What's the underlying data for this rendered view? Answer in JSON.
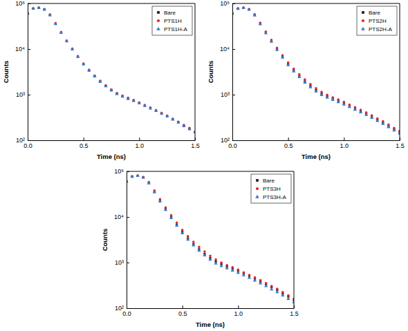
{
  "chart_data": [
    {
      "type": "scatter",
      "xlabel": "Time (ns)",
      "ylabel": "Counts",
      "log": "y",
      "legend": "upper right",
      "x": [
        0,
        0.05,
        0.1,
        0.15,
        0.2,
        0.25,
        0.3,
        0.35,
        0.4,
        0.45,
        0.5,
        0.55,
        0.6,
        0.65,
        0.7,
        0.75,
        0.8,
        0.85,
        0.9,
        0.95,
        1.0,
        1.05,
        1.1,
        1.15,
        1.2,
        1.25,
        1.3,
        1.35,
        1.4,
        1.45,
        1.5
      ],
      "xlim": [
        0,
        1.5
      ],
      "xticks": [
        {
          "value": 0,
          "label": "0.0"
        },
        {
          "value": 0.5,
          "label": "0.5"
        },
        {
          "value": 1,
          "label": "1.0"
        },
        {
          "value": 1.5,
          "label": "1.5"
        }
      ],
      "ylim": [
        100,
        100000
      ],
      "yticks": [
        {
          "value": 100,
          "label": "10²"
        },
        {
          "value": 1000,
          "label": "10³"
        },
        {
          "value": 10000,
          "label": "10⁴"
        },
        {
          "value": 100000,
          "label": "10⁵"
        }
      ],
      "series": [
        {
          "name": "Bare",
          "color": "#1a1a2e",
          "marker": "square",
          "values": [
            60000,
            77000,
            80000,
            74000,
            56000,
            36000,
            23000,
            15000,
            10000,
            6800,
            4700,
            3400,
            2550,
            1950,
            1550,
            1250,
            1050,
            920,
            820,
            740,
            660,
            580,
            510,
            450,
            390,
            340,
            290,
            250,
            210,
            180,
            150
          ]
        },
        {
          "name": "PTS1H",
          "color": "#e8231c",
          "marker": "circle",
          "values": [
            61000,
            77500,
            80000,
            74500,
            57000,
            37000,
            23500,
            15300,
            10200,
            7000,
            4800,
            3500,
            2600,
            2000,
            1600,
            1300,
            1080,
            950,
            850,
            760,
            670,
            590,
            520,
            455,
            395,
            345,
            295,
            255,
            215,
            185,
            150
          ]
        },
        {
          "name": "PTS1H-A",
          "color": "#3b78c9",
          "marker": "triangle",
          "values": [
            60500,
            77000,
            79500,
            73500,
            55500,
            35500,
            22800,
            14800,
            9900,
            6750,
            4650,
            3380,
            2530,
            1930,
            1530,
            1240,
            1040,
            910,
            810,
            730,
            650,
            570,
            500,
            440,
            385,
            335,
            285,
            245,
            205,
            175,
            150
          ]
        }
      ]
    },
    {
      "type": "scatter",
      "xlabel": "Time (ns)",
      "ylabel": "Counts",
      "log": "y",
      "legend": "upper right",
      "x": [
        0,
        0.05,
        0.1,
        0.15,
        0.2,
        0.25,
        0.3,
        0.35,
        0.4,
        0.45,
        0.5,
        0.55,
        0.6,
        0.65,
        0.7,
        0.75,
        0.8,
        0.85,
        0.9,
        0.95,
        1.0,
        1.05,
        1.1,
        1.15,
        1.2,
        1.25,
        1.3,
        1.35,
        1.4,
        1.45,
        1.5
      ],
      "xlim": [
        0,
        1.5
      ],
      "xticks": [
        {
          "value": 0,
          "label": "0.0"
        },
        {
          "value": 0.5,
          "label": "0.5"
        },
        {
          "value": 1,
          "label": "1.0"
        },
        {
          "value": 1.5,
          "label": "1.5"
        }
      ],
      "ylim": [
        100,
        100000
      ],
      "yticks": [
        {
          "value": 100,
          "label": "10²"
        },
        {
          "value": 1000,
          "label": "10³"
        },
        {
          "value": 10000,
          "label": "10⁴"
        },
        {
          "value": 100000,
          "label": "10⁵"
        }
      ],
      "series": [
        {
          "name": "Bare",
          "color": "#1a1a2e",
          "marker": "square",
          "values": [
            60000,
            77000,
            80000,
            74000,
            56000,
            36000,
            23000,
            15000,
            10000,
            6800,
            4700,
            3400,
            2550,
            1950,
            1550,
            1250,
            1050,
            920,
            820,
            740,
            650,
            570,
            500,
            440,
            380,
            330,
            285,
            245,
            205,
            175,
            150
          ]
        },
        {
          "name": "PTS2H",
          "color": "#e8231c",
          "marker": "circle",
          "values": [
            61000,
            77500,
            80500,
            75000,
            57500,
            37500,
            24000,
            15800,
            10600,
            7300,
            5050,
            3700,
            2800,
            2150,
            1700,
            1380,
            1150,
            990,
            870,
            780,
            690,
            600,
            530,
            465,
            405,
            350,
            300,
            260,
            220,
            185,
            160
          ]
        },
        {
          "name": "PTS2H-A",
          "color": "#3b78c9",
          "marker": "triangle",
          "values": [
            60000,
            76500,
            79500,
            73000,
            55000,
            35000,
            22300,
            14500,
            9600,
            6500,
            4450,
            3250,
            2430,
            1850,
            1460,
            1180,
            980,
            860,
            770,
            690,
            610,
            540,
            470,
            410,
            360,
            310,
            265,
            230,
            195,
            165,
            140
          ]
        }
      ]
    },
    {
      "type": "scatter",
      "xlabel": "Time (ns)",
      "ylabel": "Counts",
      "log": "y",
      "legend": "upper right",
      "x": [
        0,
        0.05,
        0.1,
        0.15,
        0.2,
        0.25,
        0.3,
        0.35,
        0.4,
        0.45,
        0.5,
        0.55,
        0.6,
        0.65,
        0.7,
        0.75,
        0.8,
        0.85,
        0.9,
        0.95,
        1.0,
        1.05,
        1.1,
        1.15,
        1.2,
        1.25,
        1.3,
        1.35,
        1.4,
        1.45,
        1.5
      ],
      "xlim": [
        0,
        1.5
      ],
      "xticks": [
        {
          "value": 0,
          "label": "0.0"
        },
        {
          "value": 0.5,
          "label": "0.5"
        },
        {
          "value": 1,
          "label": "1.0"
        },
        {
          "value": 1.5,
          "label": "1.5"
        }
      ],
      "ylim": [
        100,
        100000
      ],
      "yticks": [
        {
          "value": 100,
          "label": "10²"
        },
        {
          "value": 1000,
          "label": "10³"
        },
        {
          "value": 10000,
          "label": "10⁴"
        },
        {
          "value": 100000,
          "label": "10⁵"
        }
      ],
      "series": [
        {
          "name": "Bare",
          "color": "#1a1a2e",
          "marker": "square",
          "values": [
            60000,
            77000,
            80000,
            74000,
            56000,
            36000,
            23000,
            15000,
            10000,
            6800,
            4700,
            3400,
            2550,
            1950,
            1550,
            1250,
            1050,
            920,
            820,
            740,
            660,
            580,
            510,
            445,
            385,
            335,
            290,
            250,
            210,
            180,
            150
          ]
        },
        {
          "name": "PTS3H",
          "color": "#e8231c",
          "marker": "circle",
          "values": [
            61000,
            77500,
            80500,
            75000,
            58000,
            38000,
            24500,
            16200,
            10900,
            7500,
            5200,
            3800,
            2850,
            2200,
            1750,
            1400,
            1170,
            1000,
            880,
            790,
            700,
            610,
            535,
            470,
            410,
            355,
            305,
            265,
            225,
            190,
            160
          ]
        },
        {
          "name": "PTS3H-A",
          "color": "#3b78c9",
          "marker": "triangle",
          "values": [
            60000,
            76500,
            79500,
            73000,
            55000,
            34800,
            22000,
            14300,
            9500,
            6450,
            4400,
            3200,
            2400,
            1830,
            1440,
            1160,
            960,
            840,
            750,
            670,
            600,
            530,
            465,
            405,
            350,
            305,
            260,
            225,
            190,
            160,
            135
          ]
        }
      ]
    }
  ]
}
